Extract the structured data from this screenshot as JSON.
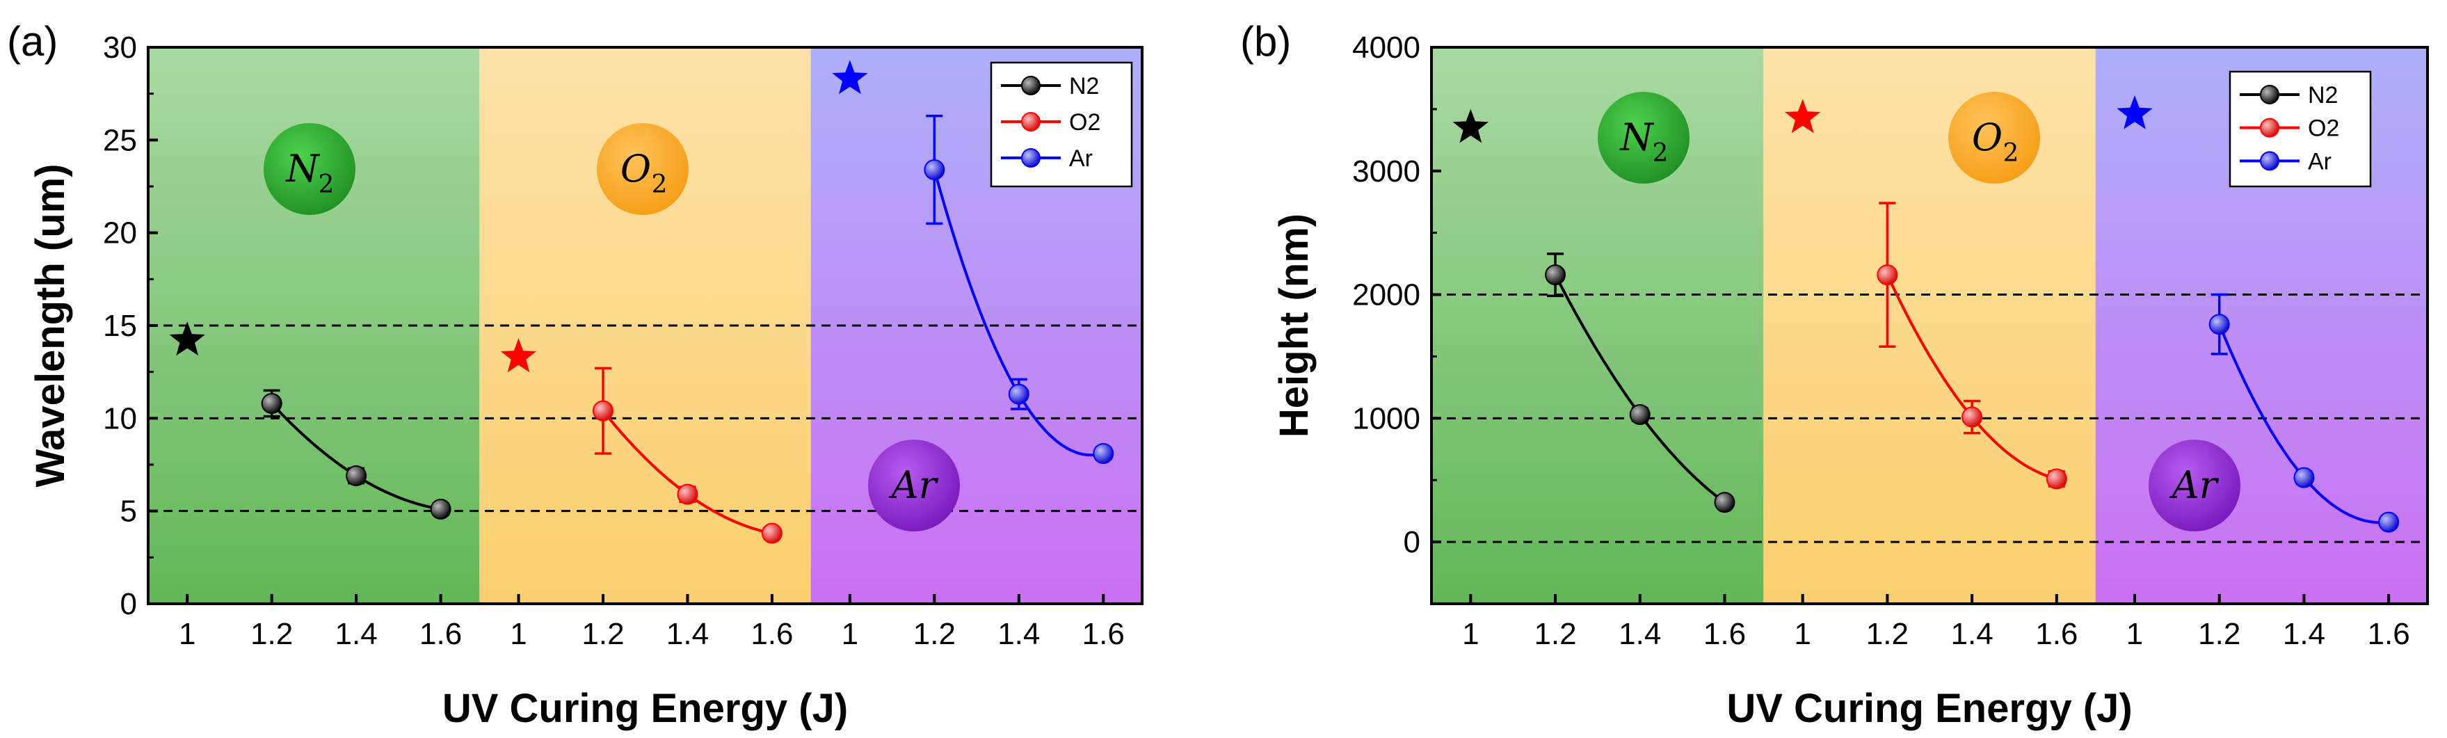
{
  "colors": {
    "N2": "#000000",
    "O2": "#ff0000",
    "Ar": "#0000ff",
    "bg_N2_top": "#a9d9a3",
    "bg_N2_bot": "#63b758",
    "bg_O2_top": "#fde2a8",
    "bg_O2_bot": "#fbcf6e",
    "bg_Ar_top": "#aeb0fa",
    "bg_Ar_bot": "#cb6ff2",
    "circle_N2": "#22a22a",
    "circle_O2": "#f9a21b",
    "circle_Ar": "#8a27cc"
  },
  "chart_data": [
    {
      "type": "line",
      "panel_label": "(a)",
      "xlabel": "UV Curing Energy (J)",
      "ylabel": "Wavelength (um)",
      "ylim": [
        0,
        30
      ],
      "yticks": [
        "0",
        "5",
        "10",
        "15",
        "20",
        "25",
        "30"
      ],
      "dashed_lines": [
        5,
        10,
        15
      ],
      "legend": [
        "N2",
        "O2",
        "Ar"
      ],
      "regions": [
        {
          "gas": "N2",
          "label_main": "N",
          "label_sub": "2",
          "xticks": [
            "1",
            "1.2",
            "1.4",
            "1.6"
          ]
        },
        {
          "gas": "O2",
          "label_main": "O",
          "label_sub": "2",
          "xticks": [
            "1",
            "1.2",
            "1.4",
            "1.6"
          ]
        },
        {
          "gas": "Ar",
          "label_main": "Ar",
          "label_sub": "",
          "xticks": [
            "1",
            "1.2",
            "1.4",
            "1.6"
          ]
        }
      ],
      "series": [
        {
          "name": "N2",
          "x": [
            1.2,
            1.4,
            1.6
          ],
          "values": [
            10.8,
            6.9,
            5.1
          ],
          "errors": [
            0.7,
            0.4,
            0.3
          ],
          "star": 14.2
        },
        {
          "name": "O2",
          "x": [
            1.2,
            1.4,
            1.6
          ],
          "values": [
            10.4,
            5.9,
            3.8
          ],
          "errors": [
            2.3,
            0.4,
            0.3
          ],
          "star": 13.3
        },
        {
          "name": "Ar",
          "x": [
            1.2,
            1.4,
            1.6
          ],
          "values": [
            23.4,
            11.3,
            8.1
          ],
          "errors": [
            2.9,
            0.8,
            0.3
          ],
          "star": 28.3
        }
      ]
    },
    {
      "type": "line",
      "panel_label": "(b)",
      "xlabel": "UV Curing Energy (J)",
      "ylabel": "Height (nm)",
      "ylim": [
        -500,
        4000
      ],
      "yticks": [
        "0",
        "1000",
        "2000",
        "3000",
        "4000"
      ],
      "dashed_lines": [
        0,
        1000,
        2000
      ],
      "legend": [
        "N2",
        "O2",
        "Ar"
      ],
      "regions": [
        {
          "gas": "N2",
          "label_main": "N",
          "label_sub": "2",
          "xticks": [
            "1",
            "1.2",
            "1.4",
            "1.6"
          ]
        },
        {
          "gas": "O2",
          "label_main": "O",
          "label_sub": "2",
          "xticks": [
            "1",
            "1.2",
            "1.4",
            "1.6"
          ]
        },
        {
          "gas": "Ar",
          "label_main": "Ar",
          "label_sub": "",
          "xticks": [
            "1",
            "1.2",
            "1.4",
            "1.6"
          ]
        }
      ],
      "series": [
        {
          "name": "N2",
          "x": [
            1.2,
            1.4,
            1.6
          ],
          "values": [
            2160,
            1030,
            320
          ],
          "errors": [
            170,
            50,
            40
          ],
          "star": 3350
        },
        {
          "name": "O2",
          "x": [
            1.2,
            1.4,
            1.6
          ],
          "values": [
            2160,
            1010,
            510
          ],
          "errors": [
            580,
            130,
            60
          ],
          "star": 3430
        },
        {
          "name": "Ar",
          "x": [
            1.2,
            1.4,
            1.6
          ],
          "values": [
            1760,
            520,
            160
          ],
          "errors": [
            240,
            50,
            40
          ],
          "star": 3460
        }
      ]
    }
  ]
}
